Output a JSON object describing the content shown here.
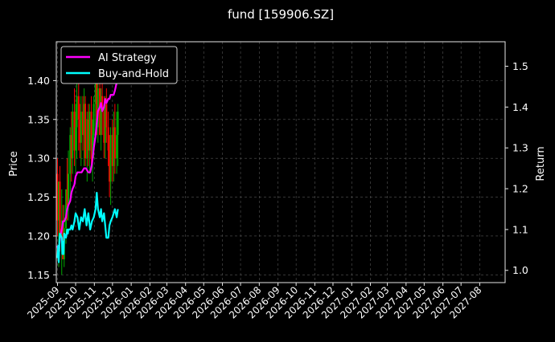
{
  "chart_data": {
    "type": "line",
    "title": "fund [159906.SZ]",
    "ylabel_left": "Price",
    "ylabel_right": "Return",
    "grid": true,
    "legend_position": "top-left",
    "x_ticks": [
      "2025-09",
      "2025-10",
      "2025-11",
      "2025-12",
      "2026-01",
      "2026-02",
      "2026-03",
      "2026-04",
      "2026-05",
      "2026-06",
      "2026-07",
      "2026-08",
      "2026-09",
      "2026-10",
      "2026-11",
      "2026-12",
      "2027-01",
      "2027-02",
      "2027-03",
      "2027-04",
      "2027-05",
      "2027-06",
      "2027-07",
      "2027-08"
    ],
    "xlim": [
      "2025-08-30",
      "2027-09-12"
    ],
    "ylim_left": [
      1.14,
      1.45
    ],
    "ylim_right": [
      0.97,
      1.56
    ],
    "y_ticks_left": [
      "1.15",
      "1.20",
      "1.25",
      "1.30",
      "1.35",
      "1.40"
    ],
    "y_ticks_right": [
      "1.0",
      "1.1",
      "1.2",
      "1.3",
      "1.4",
      "1.5"
    ],
    "colors": {
      "background": "#000000",
      "ai": "#ff00ff",
      "bh": "#00ffff",
      "up": "#00aa00",
      "down": "#ff0000",
      "grid": "#555555"
    },
    "series": [
      {
        "name": "AI Strategy",
        "axis": "right",
        "x": [
          "2025-09-01",
          "2025-09-03",
          "2025-09-05",
          "2025-09-08",
          "2025-09-10",
          "2025-09-12",
          "2025-09-15",
          "2025-09-17",
          "2025-09-19",
          "2025-09-22",
          "2025-09-24",
          "2025-09-26",
          "2025-09-29",
          "2025-10-01",
          "2025-10-04",
          "2025-10-08",
          "2025-10-11",
          "2025-10-15",
          "2025-10-18",
          "2025-10-22",
          "2025-10-25",
          "2025-10-28",
          "2025-10-31",
          "2025-11-03",
          "2025-11-05",
          "2025-11-07",
          "2025-11-10",
          "2025-11-12",
          "2025-11-14",
          "2025-11-17",
          "2025-11-19",
          "2025-11-21",
          "2025-11-24",
          "2025-11-26",
          "2025-11-28",
          "2025-12-01",
          "2025-12-03",
          "2025-12-05",
          "2025-12-08",
          "2025-12-10",
          "2025-12-12"
        ],
        "values": [
          1.06,
          1.04,
          1.08,
          1.1,
          1.12,
          1.12,
          1.13,
          1.15,
          1.16,
          1.17,
          1.19,
          1.2,
          1.21,
          1.23,
          1.24,
          1.24,
          1.24,
          1.25,
          1.25,
          1.24,
          1.24,
          1.26,
          1.3,
          1.33,
          1.36,
          1.39,
          1.4,
          1.41,
          1.39,
          1.4,
          1.42,
          1.41,
          1.42,
          1.42,
          1.43,
          1.43,
          1.43,
          1.44,
          1.46,
          1.48,
          1.5
        ]
      },
      {
        "name": "Buy-and-Hold",
        "axis": "right",
        "x": [
          "2025-09-01",
          "2025-09-02",
          "2025-09-03",
          "2025-09-04",
          "2025-09-05",
          "2025-09-08",
          "2025-09-09",
          "2025-09-10",
          "2025-09-11",
          "2025-09-12",
          "2025-09-15",
          "2025-09-16",
          "2025-09-17",
          "2025-09-18",
          "2025-09-19",
          "2025-09-22",
          "2025-09-24",
          "2025-09-26",
          "2025-09-29",
          "2025-10-01",
          "2025-10-04",
          "2025-10-07",
          "2025-10-10",
          "2025-10-13",
          "2025-10-16",
          "2025-10-19",
          "2025-10-22",
          "2025-10-25",
          "2025-10-28",
          "2025-10-31",
          "2025-11-03",
          "2025-11-05",
          "2025-11-07",
          "2025-11-10",
          "2025-11-12",
          "2025-11-14",
          "2025-11-17",
          "2025-11-19",
          "2025-11-21",
          "2025-11-24",
          "2025-11-26",
          "2025-11-28",
          "2025-12-01",
          "2025-12-03",
          "2025-12-05",
          "2025-12-08",
          "2025-12-10"
        ],
        "values": [
          1.03,
          1.06,
          1.02,
          1.07,
          1.09,
          1.08,
          1.04,
          1.07,
          1.04,
          1.09,
          1.08,
          1.09,
          1.1,
          1.09,
          1.1,
          1.1,
          1.11,
          1.1,
          1.12,
          1.14,
          1.13,
          1.1,
          1.13,
          1.12,
          1.15,
          1.11,
          1.14,
          1.1,
          1.12,
          1.13,
          1.15,
          1.19,
          1.15,
          1.13,
          1.15,
          1.12,
          1.14,
          1.11,
          1.08,
          1.08,
          1.11,
          1.12,
          1.13,
          1.14,
          1.15,
          1.13,
          1.15
        ]
      }
    ],
    "candles": {
      "axis": "left",
      "x": [
        "2025-09-01",
        "2025-09-03",
        "2025-09-05",
        "2025-09-08",
        "2025-09-10",
        "2025-09-12",
        "2025-09-15",
        "2025-09-17",
        "2025-09-19",
        "2025-09-22",
        "2025-09-24",
        "2025-09-26",
        "2025-09-29",
        "2025-10-01",
        "2025-10-03",
        "2025-10-06",
        "2025-10-08",
        "2025-10-10",
        "2025-10-13",
        "2025-10-15",
        "2025-10-17",
        "2025-10-20",
        "2025-10-22",
        "2025-10-24",
        "2025-10-27",
        "2025-10-29",
        "2025-10-31",
        "2025-11-03",
        "2025-11-05",
        "2025-11-07",
        "2025-11-10",
        "2025-11-12",
        "2025-11-14",
        "2025-11-17",
        "2025-11-19",
        "2025-11-21",
        "2025-11-24",
        "2025-11-26",
        "2025-11-28",
        "2025-12-01",
        "2025-12-03",
        "2025-12-05",
        "2025-12-08",
        "2025-12-10"
      ],
      "open": [
        1.28,
        1.22,
        1.27,
        1.2,
        1.22,
        1.17,
        1.21,
        1.26,
        1.24,
        1.28,
        1.33,
        1.3,
        1.36,
        1.31,
        1.34,
        1.38,
        1.35,
        1.32,
        1.36,
        1.33,
        1.37,
        1.3,
        1.35,
        1.31,
        1.36,
        1.3,
        1.33,
        1.37,
        1.4,
        1.34,
        1.39,
        1.33,
        1.38,
        1.36,
        1.32,
        1.37,
        1.34,
        1.31,
        1.27,
        1.33,
        1.29,
        1.34,
        1.3,
        1.33
      ],
      "high": [
        1.3,
        1.27,
        1.29,
        1.26,
        1.24,
        1.24,
        1.26,
        1.3,
        1.31,
        1.34,
        1.36,
        1.37,
        1.39,
        1.37,
        1.41,
        1.4,
        1.37,
        1.38,
        1.38,
        1.39,
        1.38,
        1.36,
        1.37,
        1.37,
        1.38,
        1.35,
        1.38,
        1.41,
        1.42,
        1.41,
        1.42,
        1.39,
        1.4,
        1.38,
        1.38,
        1.39,
        1.36,
        1.33,
        1.34,
        1.35,
        1.36,
        1.37,
        1.36,
        1.37
      ],
      "low": [
        1.2,
        1.16,
        1.18,
        1.15,
        1.19,
        1.16,
        1.19,
        1.22,
        1.22,
        1.25,
        1.27,
        1.28,
        1.29,
        1.28,
        1.3,
        1.31,
        1.3,
        1.29,
        1.31,
        1.29,
        1.29,
        1.27,
        1.29,
        1.28,
        1.29,
        1.27,
        1.3,
        1.33,
        1.33,
        1.32,
        1.33,
        1.31,
        1.33,
        1.3,
        1.3,
        1.32,
        1.29,
        1.25,
        1.24,
        1.27,
        1.27,
        1.28,
        1.28,
        1.29
      ],
      "close": [
        1.22,
        1.27,
        1.2,
        1.22,
        1.17,
        1.21,
        1.26,
        1.24,
        1.28,
        1.33,
        1.3,
        1.36,
        1.31,
        1.34,
        1.38,
        1.35,
        1.32,
        1.36,
        1.33,
        1.37,
        1.3,
        1.35,
        1.31,
        1.36,
        1.3,
        1.33,
        1.37,
        1.4,
        1.34,
        1.39,
        1.33,
        1.38,
        1.36,
        1.32,
        1.37,
        1.34,
        1.31,
        1.27,
        1.33,
        1.29,
        1.34,
        1.3,
        1.33,
        1.36
      ]
    }
  }
}
